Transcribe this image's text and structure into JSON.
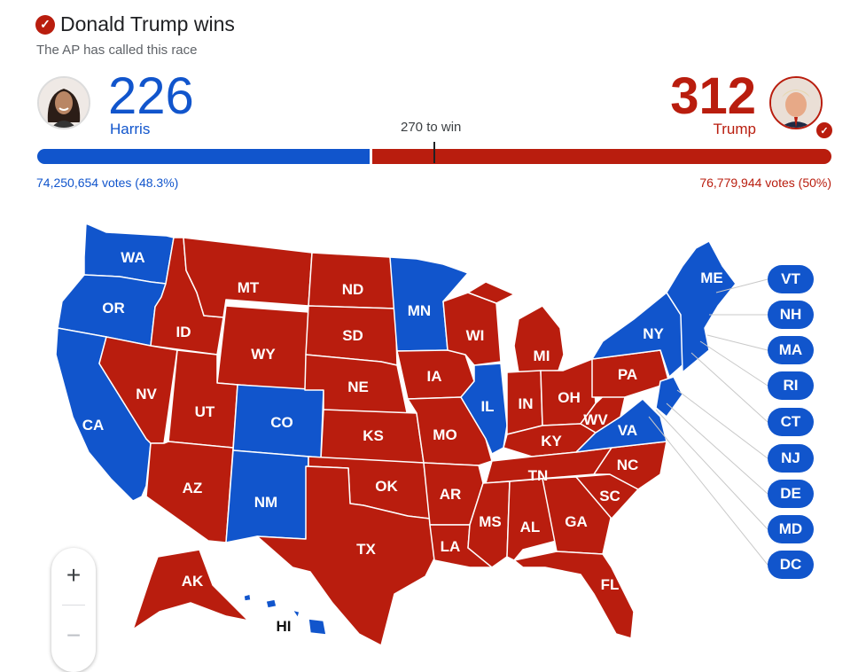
{
  "header": {
    "title": "Donald Trump wins",
    "subtitle": "The AP has called this race"
  },
  "candidates": {
    "harris": {
      "name": "Harris",
      "electoral_votes": "226",
      "popular_votes": "74,250,654 votes (48.3%)",
      "color": "#1155cc",
      "ev_value": 226
    },
    "trump": {
      "name": "Trump",
      "electoral_votes": "312",
      "popular_votes": "76,779,944 votes (50%)",
      "color": "#b91d0e",
      "ev_value": 312
    }
  },
  "threshold": {
    "label": "270 to win",
    "value": 270,
    "total": 538
  },
  "small_states": [
    {
      "abbr": "VT",
      "winner": "harris"
    },
    {
      "abbr": "NH",
      "winner": "harris"
    },
    {
      "abbr": "MA",
      "winner": "harris"
    },
    {
      "abbr": "RI",
      "winner": "harris"
    },
    {
      "abbr": "CT",
      "winner": "harris"
    },
    {
      "abbr": "NJ",
      "winner": "harris"
    },
    {
      "abbr": "DE",
      "winner": "harris"
    },
    {
      "abbr": "MD",
      "winner": "harris"
    },
    {
      "abbr": "DC",
      "winner": "harris"
    }
  ],
  "map_labels": {
    "WA": "WA",
    "OR": "OR",
    "CA": "CA",
    "ID": "ID",
    "NV": "NV",
    "MT": "MT",
    "WY": "WY",
    "UT": "UT",
    "AZ": "AZ",
    "CO": "CO",
    "NM": "NM",
    "ND": "ND",
    "SD": "SD",
    "NE": "NE",
    "KS": "KS",
    "OK": "OK",
    "TX": "TX",
    "MN": "MN",
    "IA": "IA",
    "MO": "MO",
    "AR": "AR",
    "LA": "LA",
    "WI": "WI",
    "IL": "IL",
    "MI": "MI",
    "IN": "IN",
    "OH": "OH",
    "KY": "KY",
    "TN": "TN",
    "MS": "MS",
    "AL": "AL",
    "GA": "GA",
    "FL": "FL",
    "SC": "SC",
    "NC": "NC",
    "VA": "VA",
    "WV": "WV",
    "PA": "PA",
    "NY": "NY",
    "ME": "ME",
    "AK": "AK",
    "HI": "HI"
  },
  "zoom": {
    "in": "+",
    "out": "−"
  }
}
